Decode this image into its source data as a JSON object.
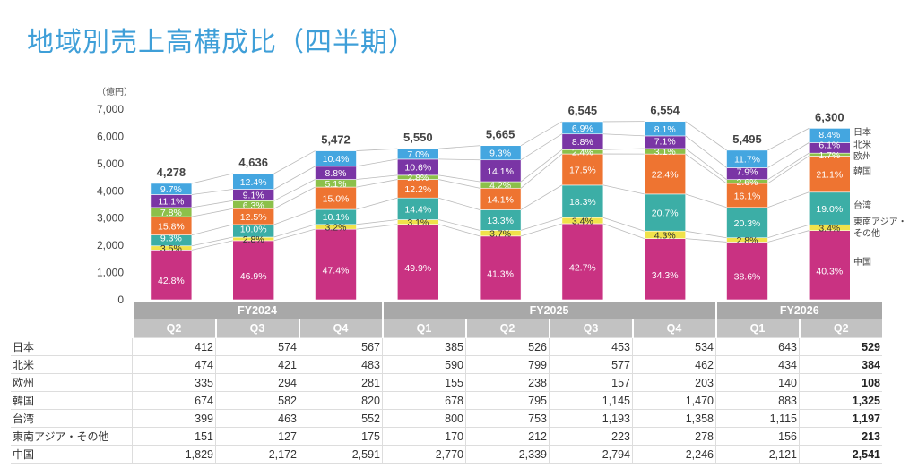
{
  "title": "地域別売上高構成比（四半期）",
  "chart_data": {
    "type": "bar",
    "stacked": true,
    "unit_label": "（億円）",
    "ylim": [
      0,
      7000
    ],
    "yticks": [
      "0",
      "1,000",
      "2,000",
      "3,000",
      "4,000",
      "5,000",
      "6,000",
      "7,000"
    ],
    "fiscal_years": [
      {
        "label": "FY2024",
        "quarters": [
          "Q2",
          "Q3",
          "Q4"
        ]
      },
      {
        "label": "FY2025",
        "quarters": [
          "Q1",
          "Q2",
          "Q3",
          "Q4"
        ]
      },
      {
        "label": "FY2026",
        "quarters": [
          "Q1",
          "Q2"
        ]
      }
    ],
    "categories": [
      "FY2024 Q2",
      "FY2024 Q3",
      "FY2024 Q4",
      "FY2025 Q1",
      "FY2025 Q2",
      "FY2025 Q3",
      "FY2025 Q4",
      "FY2026 Q1",
      "FY2026 Q2"
    ],
    "totals": [
      "4,278",
      "4,636",
      "5,472",
      "5,550",
      "5,665",
      "6,545",
      "6,554",
      "5,495",
      "6,300"
    ],
    "series": [
      {
        "name": "中国",
        "color": "#c93282",
        "values": [
          1829,
          2172,
          2591,
          2770,
          2339,
          2794,
          2246,
          2121,
          2541
        ],
        "display": [
          "1,829",
          "2,172",
          "2,591",
          "2,770",
          "2,339",
          "2,794",
          "2,246",
          "2,121",
          "2,541"
        ],
        "pct": [
          "42.8%",
          "46.9%",
          "47.4%",
          "49.9%",
          "41.3%",
          "42.7%",
          "34.3%",
          "38.6%",
          "40.3%"
        ]
      },
      {
        "name": "東南アジア・その他",
        "legend": [
          "東南アジア・",
          "その他"
        ],
        "color": "#f0e24a",
        "values": [
          151,
          127,
          175,
          170,
          212,
          223,
          278,
          156,
          213
        ],
        "display": [
          "151",
          "127",
          "175",
          "170",
          "212",
          "223",
          "278",
          "156",
          "213"
        ],
        "pct": [
          "3.5%",
          "2.8%",
          "3.2%",
          "3.1%",
          "3.7%",
          "3.4%",
          "4.3%",
          "2.8%",
          "3.4%"
        ]
      },
      {
        "name": "台湾",
        "color": "#3caea6",
        "values": [
          399,
          463,
          552,
          800,
          753,
          1193,
          1358,
          1115,
          1197
        ],
        "display": [
          "399",
          "463",
          "552",
          "800",
          "753",
          "1,193",
          "1,358",
          "1,115",
          "1,197"
        ],
        "pct": [
          "9.3%",
          "10.0%",
          "10.1%",
          "14.4%",
          "13.3%",
          "18.3%",
          "20.7%",
          "20.3%",
          "19.0%"
        ]
      },
      {
        "name": "韓国",
        "color": "#ee7431",
        "values": [
          674,
          582,
          820,
          678,
          795,
          1145,
          1470,
          883,
          1325
        ],
        "display": [
          "674",
          "582",
          "820",
          "678",
          "795",
          "1,145",
          "1,470",
          "883",
          "1,325"
        ],
        "pct": [
          "15.8%",
          "12.5%",
          "15.0%",
          "12.2%",
          "14.1%",
          "17.5%",
          "22.4%",
          "16.1%",
          "21.1%"
        ]
      },
      {
        "name": "欧州",
        "color": "#8cc04a",
        "values": [
          335,
          294,
          281,
          155,
          238,
          157,
          203,
          140,
          108
        ],
        "display": [
          "335",
          "294",
          "281",
          "155",
          "238",
          "157",
          "203",
          "140",
          "108"
        ],
        "pct": [
          "7.8%",
          "6.3%",
          "5.1%",
          "2.8%",
          "4.2%",
          "2.4%",
          "3.1%",
          "2.6%",
          "1.7%"
        ]
      },
      {
        "name": "北米",
        "color": "#7a35a5",
        "values": [
          474,
          421,
          483,
          590,
          799,
          577,
          462,
          434,
          384
        ],
        "display": [
          "474",
          "421",
          "483",
          "590",
          "799",
          "577",
          "462",
          "434",
          "384"
        ],
        "pct": [
          "11.1%",
          "9.1%",
          "8.8%",
          "10.6%",
          "14.1%",
          "8.8%",
          "7.1%",
          "7.9%",
          "6.1%"
        ]
      },
      {
        "name": "日本",
        "color": "#44a6e0",
        "values": [
          412,
          574,
          567,
          385,
          526,
          453,
          534,
          643,
          529
        ],
        "display": [
          "412",
          "574",
          "567",
          "385",
          "526",
          "453",
          "534",
          "643",
          "529"
        ],
        "pct": [
          "9.7%",
          "12.4%",
          "10.4%",
          "7.0%",
          "9.3%",
          "6.9%",
          "8.1%",
          "11.7%",
          "8.4%"
        ]
      }
    ],
    "table_row_order": [
      "日本",
      "北米",
      "欧州",
      "韓国",
      "台湾",
      "東南アジア・その他",
      "中国"
    ],
    "grid": false
  }
}
